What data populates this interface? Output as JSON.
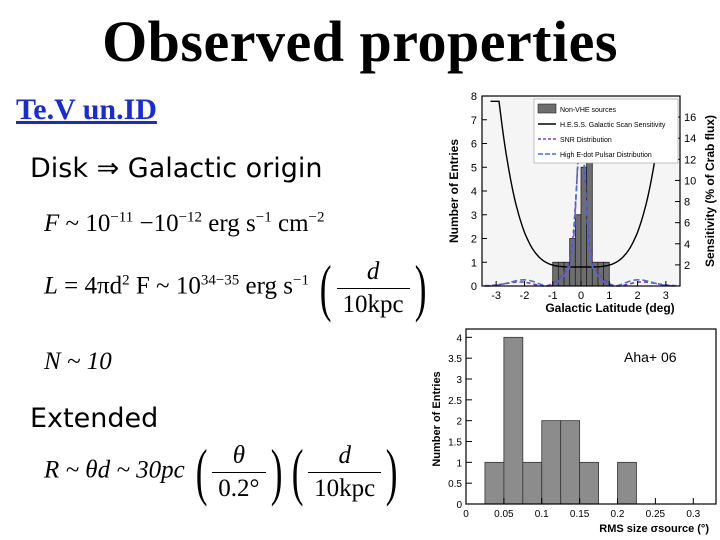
{
  "slide": {
    "title": "Observed properties",
    "subtitle": "Te.V un.ID",
    "disk_line": "Disk ⇒ Galactic origin",
    "extended_label": "Extended",
    "eq_flux": {
      "lhs": "F",
      "sim": "~",
      "a": "10",
      "a_exp": "−11",
      "dash": "−10",
      "b_exp": "−12",
      "unit": "erg s",
      "u1": "−1",
      "unit2": "cm",
      "u2": "−2"
    },
    "eq_lum": {
      "lhs": "L",
      "mid": "= 4πd",
      "two": "2",
      "F": "F ~ 10",
      "exp": "34−35",
      "unit": "erg s",
      "u1": "−1",
      "num": "d",
      "den": "10kpc",
      "pow": "2"
    },
    "eq_n": {
      "text": "N ~ 10"
    },
    "eq_r": {
      "lhs": "R ~ θd ~ 30pc",
      "num1": "θ",
      "den1": "0.2°",
      "num2": "d",
      "den2": "10kpc"
    }
  },
  "chart_data": [
    {
      "type": "bar",
      "title": "",
      "xlabel": "Galactic Latitude (deg)",
      "ylabel": "Number of Entries",
      "y2label": "Sensitivity (% of Crab flux)",
      "xlim": [
        -3.5,
        3.5
      ],
      "ylim": [
        0,
        8
      ],
      "y2lim": [
        0,
        18
      ],
      "xticks": [
        "-3",
        "-2",
        "-1",
        "0",
        "1",
        "2",
        "3"
      ],
      "yticks": [
        "0",
        "1",
        "2",
        "3",
        "4",
        "5",
        "6",
        "7",
        "8"
      ],
      "y2ticks": [
        "2",
        "4",
        "6",
        "8",
        "10",
        "12",
        "14",
        "16"
      ],
      "legend": [
        "Non-VHE sources",
        "H.E.S.S. Galactic Scan Sensitivity",
        "SNR Distribution",
        "High E-dot Pulsar Distribution"
      ],
      "legend_position": "top-right",
      "bin_width": 0.2,
      "bins_x": [
        -1.0,
        -0.8,
        -0.6,
        -0.4,
        -0.2,
        0.0,
        0.2,
        0.4,
        0.6,
        0.8
      ],
      "bins_y": [
        1,
        1,
        1,
        2,
        3,
        5,
        6,
        1,
        1,
        1
      ],
      "colors": {
        "bars": "#6e6e6e",
        "sensitivity": "#000000",
        "snr": "#7a3fb0",
        "pulsar": "#4a6fd4"
      }
    },
    {
      "type": "bar",
      "title": "",
      "annotation": "Aha+ 06",
      "xlabel": "RMS size σsource (°)",
      "ylabel": "Number of Entries",
      "xlim": [
        0,
        0.33
      ],
      "ylim": [
        0,
        4.2
      ],
      "xticks": [
        "0",
        "0.05",
        "0.1",
        "0.15",
        "0.2",
        "0.25",
        "0.3"
      ],
      "yticks": [
        "0",
        "0.5",
        "1",
        "1.5",
        "2",
        "2.5",
        "3",
        "3.5",
        "4"
      ],
      "bin_width": 0.025,
      "bins_x": [
        0.025,
        0.05,
        0.075,
        0.1,
        0.125,
        0.15,
        0.175,
        0.2
      ],
      "bins_y": [
        1,
        4,
        1,
        2,
        2,
        1,
        0,
        1
      ],
      "colors": {
        "bars": "#8c8c8c"
      }
    }
  ]
}
